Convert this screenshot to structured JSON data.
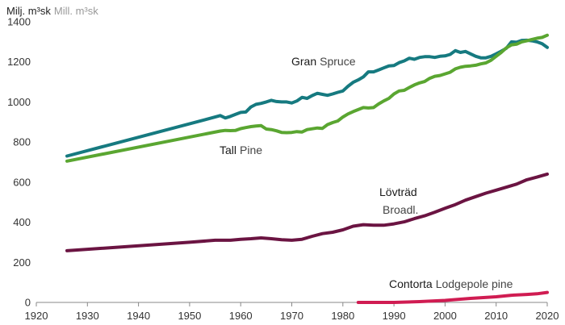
{
  "chart_data": {
    "type": "line",
    "unit_label": {
      "sv": "Milj. m³sk",
      "en": "Mill. m³sk"
    },
    "xlim": [
      1920,
      2020
    ],
    "ylim": [
      0,
      1400
    ],
    "x_ticks": [
      "1920",
      "1930",
      "1940",
      "1950",
      "1960",
      "1970",
      "1980",
      "1990",
      "2000",
      "2010",
      "2020"
    ],
    "y_ticks": [
      "0",
      "200",
      "400",
      "600",
      "800",
      "1000",
      "1200",
      "1400"
    ],
    "grid": false,
    "series": [
      {
        "key": "gran",
        "name_sv": "Gran",
        "name_en": "Spruce",
        "color": "#167a80",
        "x": [
          1926,
          1955,
          1956,
          1957,
          1958,
          1959,
          1960,
          1961,
          1962,
          1963,
          1964,
          1965,
          1966,
          1967,
          1968,
          1969,
          1970,
          1971,
          1972,
          1973,
          1974,
          1975,
          1976,
          1977,
          1978,
          1979,
          1980,
          1981,
          1982,
          1983,
          1984,
          1985,
          1986,
          1987,
          1988,
          1989,
          1990,
          1991,
          1992,
          1993,
          1994,
          1995,
          1996,
          1997,
          1998,
          1999,
          2000,
          2001,
          2002,
          2003,
          2004,
          2005,
          2006,
          2007,
          2008,
          2009,
          2010,
          2011,
          2012,
          2013,
          2014,
          2015,
          2016,
          2017,
          2018,
          2019,
          2020
        ],
        "y": [
          730,
          925,
          932,
          920,
          928,
          938,
          948,
          950,
          975,
          988,
          993,
          1000,
          1008,
          1002,
          1000,
          1000,
          995,
          1005,
          1023,
          1018,
          1032,
          1043,
          1038,
          1033,
          1040,
          1048,
          1055,
          1078,
          1098,
          1110,
          1125,
          1150,
          1150,
          1160,
          1170,
          1180,
          1182,
          1196,
          1205,
          1218,
          1213,
          1222,
          1226,
          1226,
          1222,
          1228,
          1230,
          1237,
          1256,
          1247,
          1252,
          1240,
          1228,
          1220,
          1220,
          1228,
          1240,
          1253,
          1268,
          1300,
          1298,
          1307,
          1308,
          1305,
          1300,
          1290,
          1272
        ]
      },
      {
        "key": "tall",
        "name_sv": "Tall",
        "name_en": "Pine",
        "color": "#5aa631",
        "x": [
          1926,
          1956,
          1957,
          1958,
          1959,
          1960,
          1961,
          1962,
          1963,
          1964,
          1965,
          1966,
          1967,
          1968,
          1969,
          1970,
          1971,
          1972,
          1973,
          1974,
          1975,
          1976,
          1977,
          1978,
          1979,
          1980,
          1981,
          1982,
          1983,
          1984,
          1985,
          1986,
          1987,
          1988,
          1989,
          1990,
          1991,
          1992,
          1993,
          1994,
          1995,
          1996,
          1997,
          1998,
          1999,
          2000,
          2001,
          2002,
          2003,
          2004,
          2005,
          2006,
          2007,
          2008,
          2009,
          2010,
          2011,
          2012,
          2013,
          2014,
          2015,
          2016,
          2017,
          2018,
          2019,
          2020
        ],
        "y": [
          705,
          855,
          858,
          857,
          858,
          867,
          872,
          877,
          880,
          882,
          865,
          862,
          856,
          848,
          847,
          848,
          852,
          850,
          862,
          866,
          870,
          868,
          887,
          897,
          905,
          925,
          940,
          952,
          962,
          972,
          970,
          972,
          990,
          1005,
          1018,
          1040,
          1055,
          1058,
          1072,
          1085,
          1095,
          1102,
          1118,
          1128,
          1132,
          1140,
          1148,
          1165,
          1173,
          1178,
          1180,
          1183,
          1190,
          1195,
          1208,
          1228,
          1247,
          1270,
          1285,
          1288,
          1300,
          1305,
          1312,
          1318,
          1322,
          1333
        ]
      },
      {
        "key": "lov",
        "name_sv": "Lövträd",
        "name_en": "Broadl.",
        "color": "#6b1442",
        "x": [
          1926,
          1950,
          1955,
          1958,
          1960,
          1962,
          1964,
          1966,
          1968,
          1970,
          1972,
          1974,
          1976,
          1978,
          1980,
          1982,
          1984,
          1986,
          1988,
          1990,
          1992,
          1994,
          1996,
          1998,
          2000,
          2002,
          2004,
          2006,
          2008,
          2010,
          2012,
          2014,
          2016,
          2018,
          2020
        ],
        "y": [
          258,
          300,
          310,
          310,
          315,
          318,
          322,
          318,
          313,
          310,
          315,
          330,
          343,
          350,
          362,
          380,
          388,
          385,
          385,
          392,
          402,
          418,
          432,
          450,
          470,
          488,
          510,
          528,
          545,
          560,
          575,
          590,
          612,
          625,
          640
        ]
      },
      {
        "key": "contorta",
        "name_sv": "Contorta",
        "name_en": "Lodgepole pine",
        "color": "#d01c52",
        "x": [
          1983,
          1990,
          1995,
          2000,
          2005,
          2010,
          2013,
          2016,
          2018,
          2020
        ],
        "y": [
          0,
          0,
          4,
          10,
          20,
          28,
          36,
          40,
          43,
          50
        ]
      }
    ],
    "labels": [
      {
        "series": "gran",
        "sv": "Gran",
        "en": "Spruce"
      },
      {
        "series": "tall",
        "sv": "Tall",
        "en": "Pine"
      },
      {
        "series": "lov",
        "sv": "Lövträd",
        "en": "Broadl."
      },
      {
        "series": "contorta",
        "sv": "Contorta",
        "en": "Lodgepole pine"
      }
    ]
  }
}
